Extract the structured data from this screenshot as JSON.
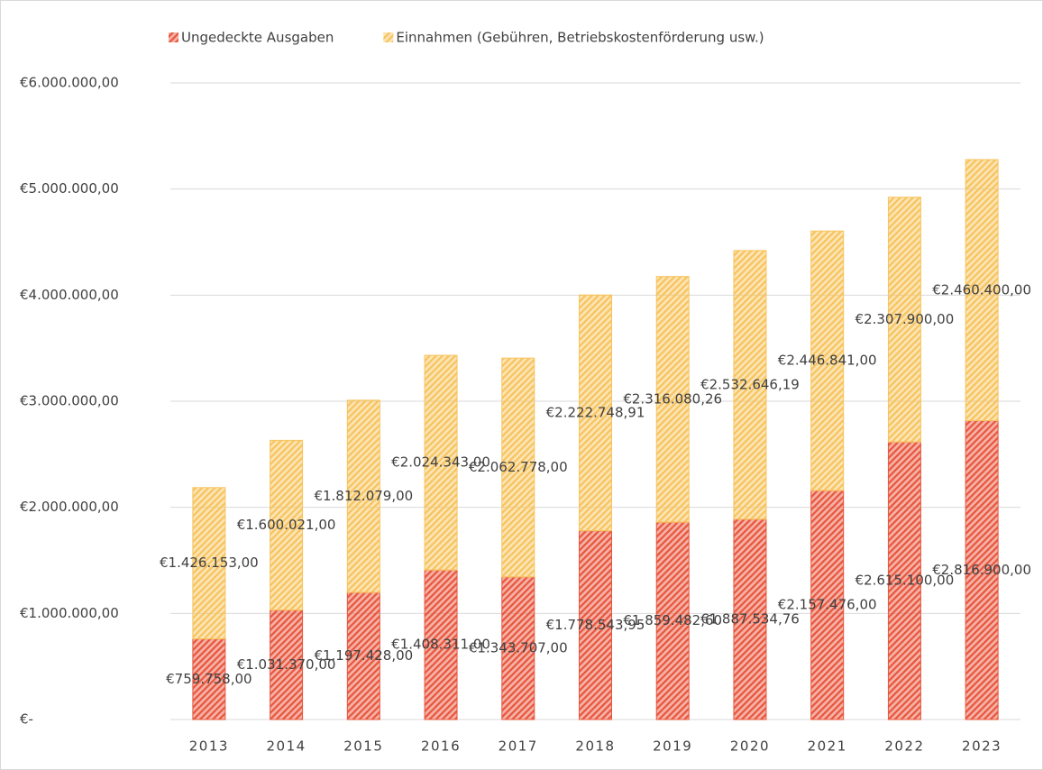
{
  "chart_data": {
    "type": "stacked_bar",
    "categories": [
      "2013",
      "2014",
      "2015",
      "2016",
      "2017",
      "2018",
      "2019",
      "2020",
      "2021",
      "2022",
      "2023"
    ],
    "series": [
      {
        "name": "Ungedeckte Ausgaben",
        "color": "#e8553c",
        "values": [
          759758,
          1031370,
          1197428,
          1408311,
          1343707,
          1778543.95,
          1859482.6,
          1887534.76,
          2157476,
          2615100,
          2816900
        ],
        "value_labels": [
          "€759.758,00",
          "€1.031.370,00",
          "€1.197.428,00",
          "€1.408.311,00",
          "€1.343.707,00",
          "€1.778.543,95",
          "€1.859.482,60",
          "€1.887.534,76",
          "€2.157.476,00",
          "€2.615.100,00",
          "€2.816.900,00"
        ]
      },
      {
        "name": "Einnahmen (Gebühren, Betriebskostenförderung usw.)",
        "color": "#f7c35c",
        "values": [
          1426153,
          1600021,
          1812079,
          2024343,
          2062778,
          2222748.91,
          2316080.26,
          2532646.19,
          2446841,
          2307900,
          2460400
        ],
        "value_labels": [
          "€1.426.153,00",
          "€1.600.021,00",
          "€1.812.079,00",
          "€2.024.343,00",
          "€2.062.778,00",
          "€2.222.748,91",
          "€2.316.080,26",
          "€2.532.646,19",
          "€2.446.841,00",
          "€2.307.900,00",
          "€2.460.400,00"
        ]
      }
    ],
    "ylim": [
      0,
      6000000
    ],
    "yticks": [
      {
        "value": 0,
        "label": "€-"
      },
      {
        "value": 1000000,
        "label": "€1.000.000,00"
      },
      {
        "value": 2000000,
        "label": "€2.000.000,00"
      },
      {
        "value": 3000000,
        "label": "€3.000.000,00"
      },
      {
        "value": 4000000,
        "label": "€4.000.000,00"
      },
      {
        "value": 5000000,
        "label": "€5.000.000,00"
      },
      {
        "value": 6000000,
        "label": "€6.000.000,00"
      }
    ],
    "grid": true,
    "legend": "top"
  }
}
